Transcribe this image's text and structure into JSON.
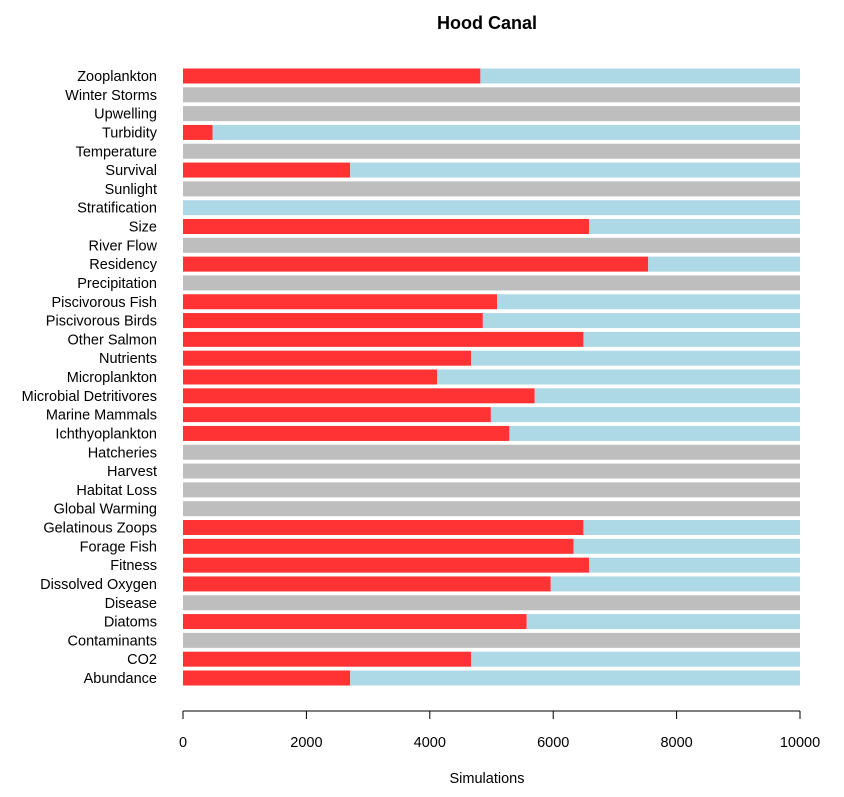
{
  "chart_data": {
    "type": "bar",
    "orientation": "horizontal",
    "stacked": true,
    "title": "Hood Canal",
    "xlabel": "Simulations",
    "ylabel": "",
    "xlim": [
      0,
      10000
    ],
    "xticks": [
      0,
      2000,
      4000,
      6000,
      8000,
      10000
    ],
    "xtick_labels": [
      "0",
      "2000",
      "4000",
      "6000",
      "8000",
      "10000"
    ],
    "grid": false,
    "legend": "none",
    "categories": [
      "Zooplankton",
      "Winter Storms",
      "Upwelling",
      "Turbidity",
      "Temperature",
      "Survival",
      "Sunlight",
      "Stratification",
      "Size",
      "River Flow",
      "Residency",
      "Precipitation",
      "Piscivorous Fish",
      "Piscivorous Birds",
      "Other Salmon",
      "Nutrients",
      "Microplankton",
      "Microbial Detritivores",
      "Marine Mammals",
      "Ichthyoplankton",
      "Hatcheries",
      "Harvest",
      "Habitat Loss",
      "Global Warming",
      "Gelatinous Zoops",
      "Forage Fish",
      "Fitness",
      "Dissolved Oxygen",
      "Disease",
      "Diatoms",
      "Contaminants",
      "CO2",
      "Abundance"
    ],
    "series": [
      {
        "color": "#ff3333",
        "values": [
          4820,
          0,
          0,
          480,
          0,
          2710,
          0,
          0,
          6580,
          0,
          7540,
          0,
          5090,
          4860,
          6490,
          4670,
          4120,
          5700,
          4990,
          5290,
          0,
          0,
          0,
          0,
          6490,
          6330,
          6580,
          5960,
          0,
          5570,
          0,
          4670,
          2710
        ]
      },
      {
        "color": "#add8e6",
        "values": [
          5180,
          0,
          0,
          9520,
          0,
          7290,
          0,
          10000,
          3420,
          0,
          2460,
          0,
          4910,
          5140,
          3510,
          5330,
          5880,
          4300,
          5010,
          4710,
          0,
          0,
          0,
          0,
          3510,
          3670,
          3420,
          4040,
          0,
          4430,
          0,
          5330,
          7290
        ]
      },
      {
        "color": "#bebebe",
        "values": [
          0,
          10000,
          10000,
          0,
          10000,
          0,
          10000,
          0,
          0,
          10000,
          0,
          10000,
          0,
          0,
          0,
          0,
          0,
          0,
          0,
          0,
          10000,
          10000,
          10000,
          10000,
          0,
          0,
          0,
          0,
          10000,
          0,
          10000,
          0,
          0
        ]
      }
    ]
  }
}
